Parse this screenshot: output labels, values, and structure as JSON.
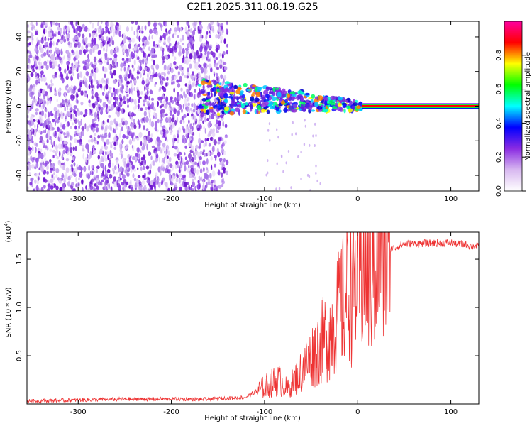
{
  "title": "C2E1.2025.311.08.19.G25",
  "chart_data": [
    {
      "type": "heatmap",
      "xlabel": "Height of straight line (km)",
      "ylabel": "Frequency (Hz)",
      "xlim": [
        -355,
        130
      ],
      "ylim": [
        -49,
        49
      ],
      "x_ticks": [
        -300,
        -200,
        -100,
        0,
        100
      ],
      "y_ticks": [
        -40,
        -20,
        0,
        20,
        40
      ],
      "colorbar": {
        "label": "Normalized spectral amplitude",
        "range": [
          0,
          1
        ],
        "ticks": [
          "0.0",
          "0.2",
          "0.4",
          "0.6",
          "0.8"
        ],
        "tick_values": [
          0.0,
          0.2,
          0.4,
          0.6,
          0.8
        ],
        "colors": [
          "#ffffff",
          "#d8b8f0",
          "#8a2be2",
          "#0000ff",
          "#00ffff",
          "#00ff00",
          "#ffff00",
          "#ff0000",
          "#ff00a0"
        ]
      },
      "features": {
        "noise_region_x": [
          -355,
          -140
        ],
        "tone_start_x": -170,
        "stable_tone_x": [
          5,
          130
        ],
        "stable_tone_freq": 0
      }
    },
    {
      "type": "line",
      "xlabel": "Height of straight line (km)",
      "ylabel": "SNR (10 * v/v)",
      "multiplier_label": "(x10",
      "multiplier_exp": "4",
      "xlim": [
        -355,
        130
      ],
      "ylim": [
        0.0,
        1.78
      ],
      "x_ticks": [
        -300,
        -200,
        -100,
        0,
        100
      ],
      "y_ticks": [
        0.5,
        1.0,
        1.5
      ],
      "y_tick_labels": [
        "0.5",
        "1.0",
        "1.5"
      ],
      "color": "#ee3333",
      "profile": [
        {
          "x": -355,
          "y": 0.03
        },
        {
          "x": -250,
          "y": 0.05
        },
        {
          "x": -160,
          "y": 0.05
        },
        {
          "x": -120,
          "y": 0.07
        },
        {
          "x": -100,
          "y": 0.18
        },
        {
          "x": -85,
          "y": 0.25
        },
        {
          "x": -75,
          "y": 0.15
        },
        {
          "x": -60,
          "y": 0.35
        },
        {
          "x": -45,
          "y": 0.55
        },
        {
          "x": -30,
          "y": 0.75
        },
        {
          "x": -20,
          "y": 0.95
        },
        {
          "x": -10,
          "y": 1.2
        },
        {
          "x": 0,
          "y": 1.35
        },
        {
          "x": 15,
          "y": 1.45
        },
        {
          "x": 30,
          "y": 1.58
        },
        {
          "x": 50,
          "y": 1.66
        },
        {
          "x": 100,
          "y": 1.67
        },
        {
          "x": 130,
          "y": 1.63
        }
      ]
    }
  ]
}
